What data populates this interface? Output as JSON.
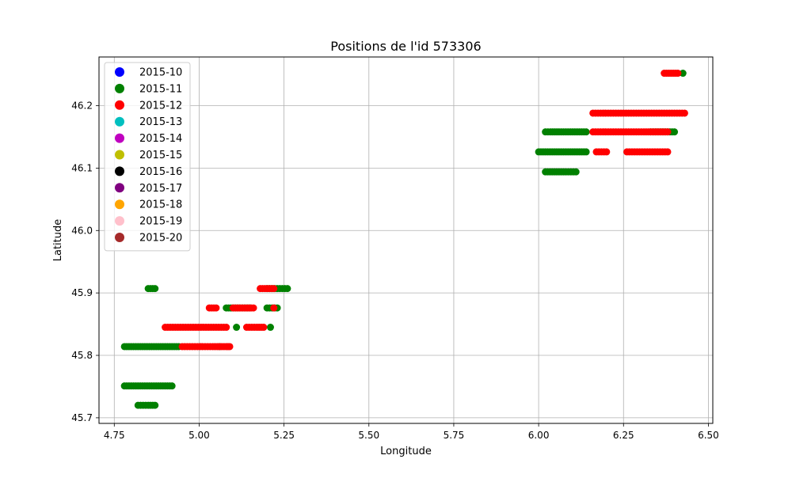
{
  "chart_data": {
    "type": "scatter",
    "title": "Positions de l'id 573306",
    "xlabel": "Longitude",
    "ylabel": "Latitude",
    "xlim": [
      4.705,
      6.513
    ],
    "ylim": [
      45.691,
      46.278
    ],
    "xticks": [
      4.75,
      5.0,
      5.25,
      5.5,
      5.75,
      6.0,
      6.25,
      6.5
    ],
    "xtick_labels": [
      "4.75",
      "5.00",
      "5.25",
      "5.50",
      "5.75",
      "6.00",
      "6.25",
      "6.50"
    ],
    "yticks": [
      45.7,
      45.8,
      45.9,
      46.0,
      46.1,
      46.2
    ],
    "ytick_labels": [
      "45.7",
      "45.8",
      "45.9",
      "46.0",
      "46.1",
      "46.2"
    ],
    "grid": true,
    "legend": {
      "placement": "upper-left"
    },
    "series": [
      {
        "name": "2015-10",
        "color": "#0000ff",
        "points": []
      },
      {
        "name": "2015-11",
        "color": "#008000",
        "points": [
          [
            4.78,
            45.751
          ],
          [
            4.8,
            45.751
          ],
          [
            4.82,
            45.751
          ],
          [
            4.84,
            45.751
          ],
          [
            4.86,
            45.751
          ],
          [
            4.88,
            45.751
          ],
          [
            4.9,
            45.751
          ],
          [
            4.92,
            45.751
          ],
          [
            4.82,
            45.72
          ],
          [
            4.835,
            45.72
          ],
          [
            4.85,
            45.72
          ],
          [
            4.87,
            45.72
          ],
          [
            4.78,
            45.814
          ],
          [
            4.8,
            45.814
          ],
          [
            4.82,
            45.814
          ],
          [
            4.84,
            45.814
          ],
          [
            4.86,
            45.814
          ],
          [
            4.88,
            45.814
          ],
          [
            4.9,
            45.814
          ],
          [
            4.92,
            45.814
          ],
          [
            4.94,
            45.814
          ],
          [
            5.06,
            45.814
          ],
          [
            5.11,
            45.845
          ],
          [
            5.21,
            45.845
          ],
          [
            5.08,
            45.876
          ],
          [
            5.12,
            45.876
          ],
          [
            5.15,
            45.876
          ],
          [
            5.2,
            45.876
          ],
          [
            5.23,
            45.876
          ],
          [
            4.85,
            45.907
          ],
          [
            4.87,
            45.907
          ],
          [
            5.2,
            45.907
          ],
          [
            5.23,
            45.907
          ],
          [
            5.26,
            45.907
          ],
          [
            6.0,
            46.126
          ],
          [
            6.02,
            46.126
          ],
          [
            6.04,
            46.126
          ],
          [
            6.06,
            46.126
          ],
          [
            6.08,
            46.126
          ],
          [
            6.1,
            46.126
          ],
          [
            6.12,
            46.126
          ],
          [
            6.14,
            46.126
          ],
          [
            6.02,
            46.094
          ],
          [
            6.04,
            46.094
          ],
          [
            6.06,
            46.094
          ],
          [
            6.08,
            46.094
          ],
          [
            6.11,
            46.094
          ],
          [
            6.02,
            46.158
          ],
          [
            6.035,
            46.158
          ],
          [
            6.06,
            46.158
          ],
          [
            6.08,
            46.158
          ],
          [
            6.1,
            46.158
          ],
          [
            6.12,
            46.158
          ],
          [
            6.14,
            46.158
          ],
          [
            6.33,
            46.158
          ],
          [
            6.36,
            46.158
          ],
          [
            6.4,
            46.158
          ],
          [
            6.425,
            46.252
          ]
        ]
      },
      {
        "name": "2015-12",
        "color": "#ff0000",
        "points": [
          [
            4.95,
            45.814
          ],
          [
            4.98,
            45.814
          ],
          [
            5.01,
            45.814
          ],
          [
            5.04,
            45.814
          ],
          [
            5.08,
            45.814
          ],
          [
            5.09,
            45.814
          ],
          [
            4.9,
            45.845
          ],
          [
            4.93,
            45.845
          ],
          [
            4.96,
            45.845
          ],
          [
            4.99,
            45.845
          ],
          [
            5.02,
            45.845
          ],
          [
            5.05,
            45.845
          ],
          [
            5.08,
            45.845
          ],
          [
            5.14,
            45.845
          ],
          [
            5.17,
            45.845
          ],
          [
            5.19,
            45.845
          ],
          [
            5.03,
            45.876
          ],
          [
            5.05,
            45.876
          ],
          [
            5.1,
            45.876
          ],
          [
            5.14,
            45.876
          ],
          [
            5.16,
            45.876
          ],
          [
            5.22,
            45.876
          ],
          [
            5.18,
            45.907
          ],
          [
            5.22,
            45.907
          ],
          [
            6.16,
            46.188
          ],
          [
            6.19,
            46.188
          ],
          [
            6.22,
            46.188
          ],
          [
            6.25,
            46.188
          ],
          [
            6.28,
            46.188
          ],
          [
            6.31,
            46.188
          ],
          [
            6.34,
            46.188
          ],
          [
            6.37,
            46.188
          ],
          [
            6.4,
            46.188
          ],
          [
            6.43,
            46.188
          ],
          [
            6.16,
            46.158
          ],
          [
            6.19,
            46.158
          ],
          [
            6.22,
            46.158
          ],
          [
            6.25,
            46.158
          ],
          [
            6.28,
            46.158
          ],
          [
            6.31,
            46.158
          ],
          [
            6.35,
            46.158
          ],
          [
            6.38,
            46.158
          ],
          [
            6.17,
            46.126
          ],
          [
            6.2,
            46.126
          ],
          [
            6.26,
            46.126
          ],
          [
            6.29,
            46.126
          ],
          [
            6.32,
            46.126
          ],
          [
            6.35,
            46.126
          ],
          [
            6.38,
            46.126
          ],
          [
            6.37,
            46.252
          ],
          [
            6.39,
            46.252
          ],
          [
            6.41,
            46.252
          ]
        ]
      },
      {
        "name": "2015-13",
        "color": "#00bfbf",
        "points": []
      },
      {
        "name": "2015-14",
        "color": "#bf00bf",
        "points": []
      },
      {
        "name": "2015-15",
        "color": "#bfbf00",
        "points": []
      },
      {
        "name": "2015-16",
        "color": "#000000",
        "points": []
      },
      {
        "name": "2015-17",
        "color": "#800080",
        "points": []
      },
      {
        "name": "2015-18",
        "color": "#ffa500",
        "points": []
      },
      {
        "name": "2015-19",
        "color": "#ffc0cb",
        "points": []
      },
      {
        "name": "2015-20",
        "color": "#a52a2a",
        "points": []
      }
    ]
  }
}
